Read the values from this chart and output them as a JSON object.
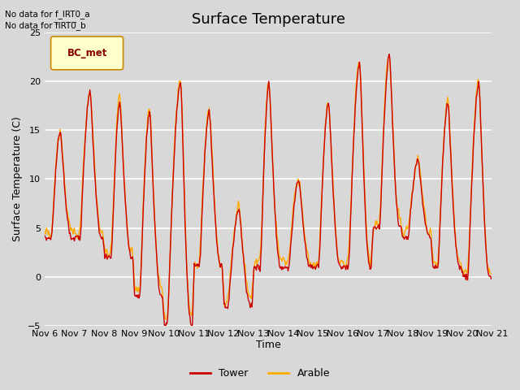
{
  "title": "Surface Temperature",
  "xlabel": "Time",
  "ylabel": "Surface Temperature (C)",
  "ylim": [
    -5,
    25
  ],
  "yticks": [
    -5,
    0,
    5,
    10,
    15,
    20,
    25
  ],
  "x_tick_days": [
    6,
    7,
    8,
    9,
    10,
    11,
    12,
    13,
    14,
    15,
    16,
    17,
    18,
    19,
    20,
    21
  ],
  "tower_color": "#cc0000",
  "arable_color": "#ffaa00",
  "no_data_texts": [
    "No data for f_IRT0_a",
    "No data for f̅IRT0̅_b"
  ],
  "bc_met_label": "BC_met",
  "bc_met_bg": "#ffffcc",
  "bc_met_border": "#cc8800",
  "bc_met_text_color": "#880000",
  "fig_bg_color": "#d8d8d8",
  "plot_bg_color": "#d8d8d8",
  "grid_color": "#ffffff",
  "title_fontsize": 13,
  "axis_label_fontsize": 9,
  "tick_fontsize": 8,
  "line_width": 1.0
}
